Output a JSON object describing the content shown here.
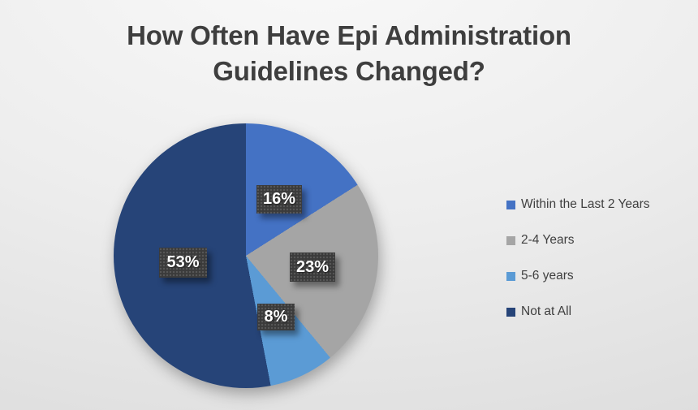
{
  "slide": {
    "title_line1": "How Often Have Epi Administration",
    "title_line2": "Guidelines Changed?"
  },
  "chart_data": {
    "type": "pie",
    "title": "How Often Have Epi Administration Guidelines Changed?",
    "categories": [
      "Within the Last 2 Years",
      "2-4 Years",
      "5-6 years",
      "Not at All"
    ],
    "values": [
      16,
      23,
      8,
      53
    ],
    "unit": "percent",
    "slice_labels": [
      "16%",
      "23%",
      "8%",
      "53%"
    ],
    "colors": [
      "#4472C4",
      "#A5A5A5",
      "#5B9BD5",
      "#264478"
    ],
    "start_angle_deg": 0,
    "direction": "clockwise",
    "legend_position": "right",
    "label_box_color": "#3B3B3B",
    "label_text_color": "#FFFFFF",
    "title_color": "#3E3E3E",
    "background": "light-gray-gradient"
  },
  "legend": {
    "items": [
      {
        "label": "Within the Last 2 Years",
        "color": "#4472C4"
      },
      {
        "label": "2-4 Years",
        "color": "#A5A5A5"
      },
      {
        "label": "5-6 years",
        "color": "#5B9BD5"
      },
      {
        "label": "Not at All",
        "color": "#264478"
      }
    ]
  }
}
